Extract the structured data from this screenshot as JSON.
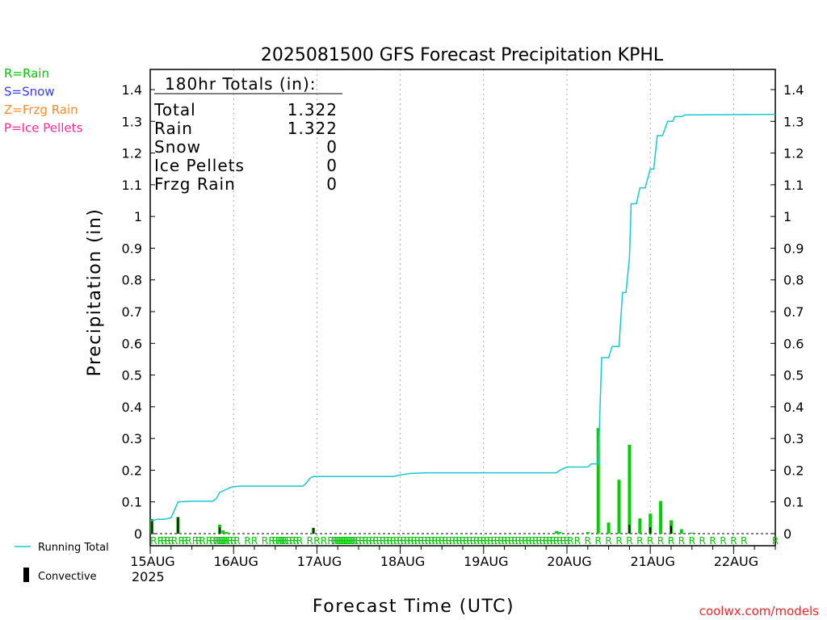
{
  "chart_data": {
    "type": "bar",
    "title": "2025081500 GFS Forecast Precipitation KPHL",
    "xlabel": "Forecast Time (UTC)",
    "ylabel": "Precipitation (in)",
    "ylim": [
      0,
      1.4
    ],
    "y_ticks": [
      "0",
      "0.1",
      "0.2",
      "0.3",
      "0.4",
      "0.5",
      "0.6",
      "0.7",
      "0.8",
      "0.9",
      "1",
      "1.1",
      "1.2",
      "1.3",
      "1.4"
    ],
    "x_unit": "hours since 15AUG 00Z",
    "x_range": [
      0,
      180
    ],
    "x_ticks": [
      {
        "hour": 0,
        "label": "15AUG"
      },
      {
        "hour": 24,
        "label": "16AUG"
      },
      {
        "hour": 48,
        "label": "17AUG"
      },
      {
        "hour": 72,
        "label": "18AUG"
      },
      {
        "hour": 96,
        "label": "19AUG"
      },
      {
        "hour": 120,
        "label": "20AUG"
      },
      {
        "hour": 144,
        "label": "21AUG"
      },
      {
        "hour": 168,
        "label": "22AUG"
      }
    ],
    "year_label": "2025",
    "grid": true,
    "totals_box": {
      "header": "180hr Totals (in):",
      "rows": [
        {
          "label": "Total",
          "value": "1.322"
        },
        {
          "label": "Rain",
          "value": "1.322"
        },
        {
          "label": "Snow",
          "value": "0"
        },
        {
          "label": "Ice Pellets",
          "value": "0"
        },
        {
          "label": "Frzg Rain",
          "value": "0"
        }
      ]
    },
    "type_legend": [
      {
        "text": "R=Rain",
        "color": "#00c800"
      },
      {
        "text": "S=Snow",
        "color": "#3c3cff"
      },
      {
        "text": "Z=Frzg Rain",
        "color": "#ff8c28"
      },
      {
        "text": "P=Ice Pellets",
        "color": "#ff2a9a"
      }
    ],
    "series_legend": [
      {
        "text": "Running Total",
        "color": "#18c8d0"
      },
      {
        "text": "Convective",
        "color": "#000000"
      }
    ],
    "credit": "coolwx.com/models",
    "colors": {
      "bar": "#00d000",
      "convective": "#000000",
      "running_total": "#18c8d0",
      "precip_type": "#00c800",
      "grid": "#aaaaaa"
    },
    "series": [
      {
        "name": "Running Total",
        "points": [
          [
            0,
            0.04
          ],
          [
            2,
            0.045
          ],
          [
            4,
            0.045
          ],
          [
            6,
            0.05
          ],
          [
            8,
            0.1
          ],
          [
            12,
            0.102
          ],
          [
            18,
            0.102
          ],
          [
            19,
            0.11
          ],
          [
            20,
            0.13
          ],
          [
            22,
            0.14
          ],
          [
            23,
            0.145
          ],
          [
            24,
            0.148
          ],
          [
            26,
            0.15
          ],
          [
            36,
            0.15
          ],
          [
            44,
            0.15
          ],
          [
            45,
            0.16
          ],
          [
            46,
            0.175
          ],
          [
            47,
            0.18
          ],
          [
            48,
            0.18
          ],
          [
            60,
            0.18
          ],
          [
            70,
            0.18
          ],
          [
            72,
            0.185
          ],
          [
            75,
            0.19
          ],
          [
            80,
            0.192
          ],
          [
            100,
            0.192
          ],
          [
            117,
            0.192
          ],
          [
            118,
            0.2
          ],
          [
            120,
            0.21
          ],
          [
            126,
            0.21
          ],
          [
            127,
            0.22
          ],
          [
            129,
            0.22
          ],
          [
            130,
            0.555
          ],
          [
            132,
            0.555
          ],
          [
            133,
            0.59
          ],
          [
            135,
            0.59
          ],
          [
            136,
            0.76
          ],
          [
            137,
            0.76
          ],
          [
            138,
            0.87
          ],
          [
            138.5,
            1.04
          ],
          [
            140,
            1.04
          ],
          [
            141,
            1.09
          ],
          [
            142.5,
            1.09
          ],
          [
            144,
            1.15
          ],
          [
            145,
            1.15
          ],
          [
            146,
            1.255
          ],
          [
            147.5,
            1.255
          ],
          [
            149,
            1.3
          ],
          [
            150.5,
            1.3
          ],
          [
            151,
            1.315
          ],
          [
            153,
            1.315
          ],
          [
            154,
            1.32
          ],
          [
            180,
            1.322
          ]
        ]
      },
      {
        "name": "Precipitation",
        "values": [
          [
            0.5,
            0.045
          ],
          [
            8,
            0.052
          ],
          [
            20,
            0.028
          ],
          [
            21,
            0.01
          ],
          [
            22,
            0.005
          ],
          [
            47,
            0.018
          ],
          [
            117,
            0.008
          ],
          [
            118,
            0.005
          ],
          [
            126,
            0.005
          ],
          [
            129,
            0.333
          ],
          [
            132,
            0.035
          ],
          [
            135,
            0.17
          ],
          [
            138,
            0.28
          ],
          [
            141,
            0.048
          ],
          [
            144,
            0.063
          ],
          [
            147,
            0.103
          ],
          [
            150,
            0.042
          ],
          [
            153,
            0.014
          ],
          [
            156,
            0.003
          ]
        ]
      },
      {
        "name": "Convective",
        "values": [
          [
            0.5,
            0.045
          ],
          [
            8,
            0.052
          ],
          [
            20,
            0.02
          ],
          [
            47,
            0.018
          ],
          [
            138,
            0.028
          ],
          [
            144,
            0.02
          ],
          [
            150,
            0.025
          ]
        ]
      }
    ],
    "precip_type_marks": {
      "letter": "R",
      "hours": [
        1,
        3,
        4,
        5,
        6,
        7,
        9,
        10,
        11,
        13,
        14,
        15,
        17,
        18,
        19,
        19.5,
        20,
        20.5,
        21,
        21.5,
        22,
        23,
        24,
        25,
        28,
        30,
        33,
        35,
        36,
        37,
        37.5,
        38,
        38.5,
        39,
        40,
        41,
        42,
        43,
        46,
        48,
        50,
        52,
        53,
        53.5,
        54,
        54.5,
        55,
        55.5,
        56,
        56.5,
        57,
        57.5,
        58,
        58.5,
        59,
        60,
        61,
        62,
        63,
        64,
        65,
        66,
        67,
        68,
        69,
        70,
        71,
        72,
        73,
        74,
        75,
        76,
        77,
        78,
        79,
        80,
        81,
        82,
        83,
        84,
        85,
        86,
        87,
        88,
        89,
        90,
        91,
        92,
        93,
        94,
        95,
        96,
        97,
        98,
        99,
        100,
        101,
        102,
        103,
        104,
        105,
        106,
        107,
        108,
        109,
        110,
        111,
        112,
        113,
        114,
        115,
        116,
        117,
        118,
        119,
        120,
        121,
        123,
        126,
        129,
        132,
        135,
        138,
        141,
        144,
        147,
        150,
        153,
        156,
        159,
        162,
        165,
        168,
        171,
        180
      ]
    }
  }
}
